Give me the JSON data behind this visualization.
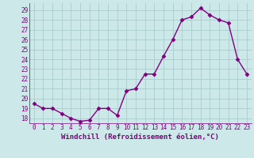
{
  "x": [
    0,
    1,
    2,
    3,
    4,
    5,
    6,
    7,
    8,
    9,
    10,
    11,
    12,
    13,
    14,
    15,
    16,
    17,
    18,
    19,
    20,
    21,
    22,
    23
  ],
  "y": [
    19.5,
    19.0,
    19.0,
    18.5,
    18.0,
    17.7,
    17.8,
    19.0,
    19.0,
    18.3,
    20.8,
    21.0,
    22.5,
    22.5,
    24.3,
    26.0,
    28.0,
    28.3,
    29.2,
    28.5,
    28.0,
    27.7,
    24.0,
    22.5
  ],
  "line_color": "#800080",
  "marker": "D",
  "marker_size": 2.5,
  "bg_color": "#cce8e8",
  "grid_color": "#aacccc",
  "xlabel": "Windchill (Refroidissement éolien,°C)",
  "ylim": [
    17.5,
    29.7
  ],
  "xlim": [
    -0.5,
    23.5
  ],
  "yticks": [
    18,
    19,
    20,
    21,
    22,
    23,
    24,
    25,
    26,
    27,
    28,
    29
  ],
  "xticks": [
    0,
    1,
    2,
    3,
    4,
    5,
    6,
    7,
    8,
    9,
    10,
    11,
    12,
    13,
    14,
    15,
    16,
    17,
    18,
    19,
    20,
    21,
    22,
    23
  ],
  "tick_label_size": 5.5,
  "xlabel_size": 6.5,
  "line_width": 1.0
}
